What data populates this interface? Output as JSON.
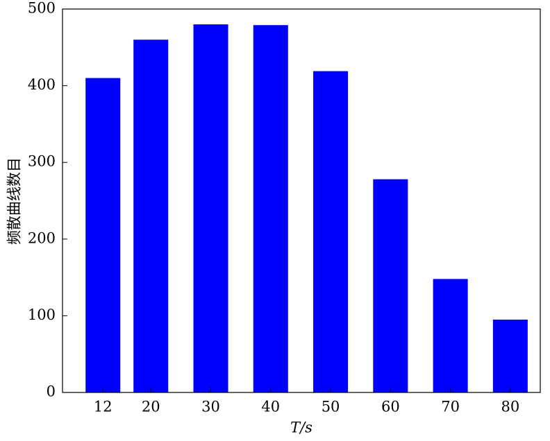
{
  "chart_data": {
    "type": "bar",
    "x": [
      12,
      20,
      30,
      40,
      50,
      60,
      70,
      80
    ],
    "values": [
      410,
      460,
      480,
      479,
      419,
      278,
      148,
      95
    ],
    "color": "#0000ff",
    "xlabel": "T/s",
    "ylabel": "频散曲线数目",
    "xlim": [
      5.25,
      85
    ],
    "ylim": [
      0,
      500
    ],
    "xticks": [
      12,
      20,
      30,
      40,
      50,
      60,
      70,
      80
    ],
    "yticks": [
      0,
      100,
      200,
      300,
      400,
      500
    ]
  }
}
